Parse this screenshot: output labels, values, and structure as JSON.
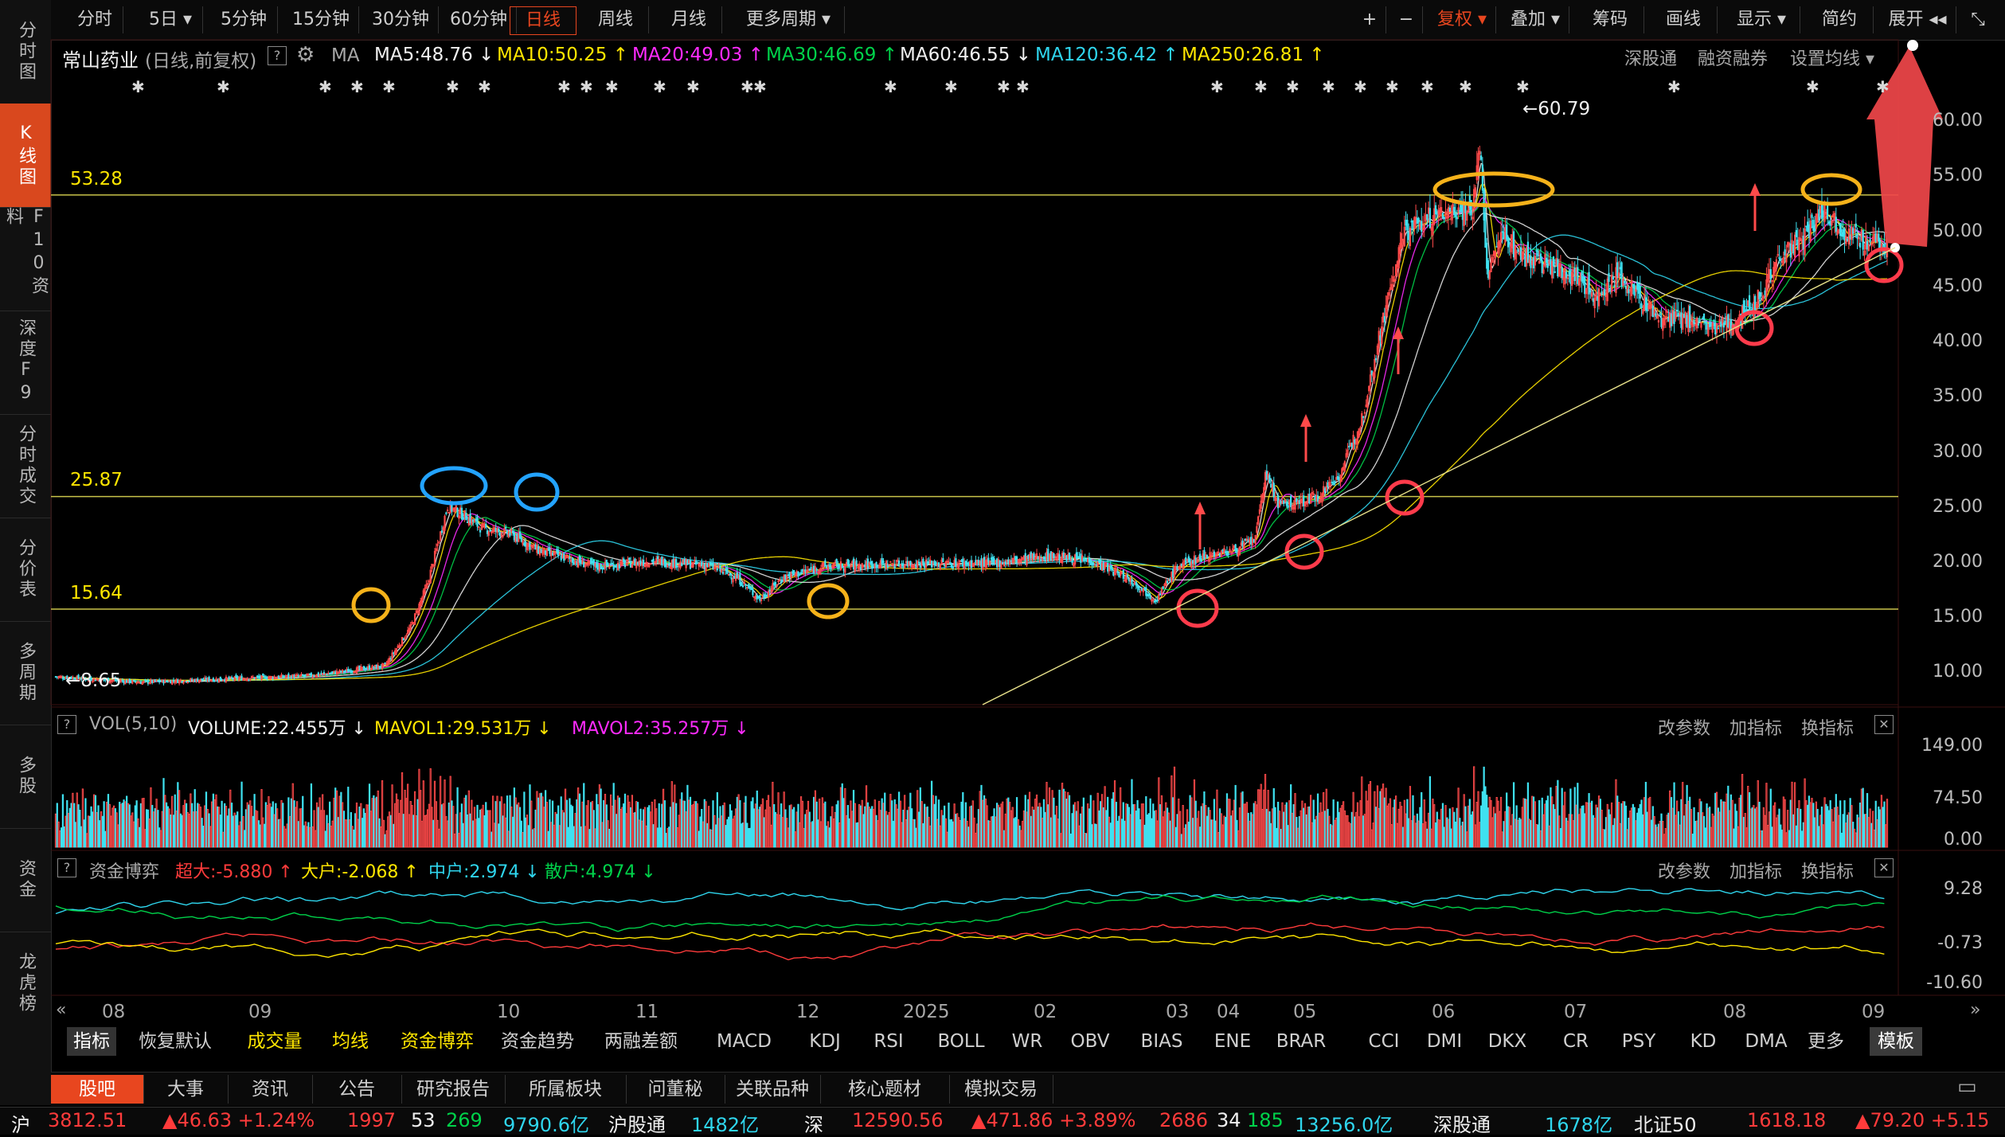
{
  "sidebar": {
    "items": [
      {
        "label": "分时图",
        "active": false
      },
      {
        "label": "K线图",
        "active": true
      },
      {
        "label": "F10资料",
        "active": false
      },
      {
        "label": "深度F9",
        "active": false
      },
      {
        "label": "分时成交",
        "active": false
      },
      {
        "label": "分价表",
        "active": false
      },
      {
        "label": "多周期",
        "active": false
      },
      {
        "label": "多股",
        "active": false
      },
      {
        "label": "资金",
        "active": false
      },
      {
        "label": "龙虎榜",
        "active": false
      }
    ]
  },
  "toolbar": {
    "periods": [
      "分时",
      "5日 ▾",
      "5分钟",
      "15分钟",
      "30分钟",
      "60分钟",
      "日线",
      "周线",
      "月线",
      "更多周期 ▾"
    ],
    "active_period": "日线",
    "right": {
      "plus": "+",
      "minus": "−",
      "fuquan": "复权 ▾",
      "overlay": "叠加 ▾",
      "chips": "筹码",
      "draw": "画线",
      "display": "显示 ▾",
      "simple": "简约",
      "expand": "展开 ◂◂",
      "shrink": "⤡"
    }
  },
  "header": {
    "stock": "常山药业",
    "mode": "(日线,前复权)",
    "help": "?",
    "ma_label": "MA",
    "ma": [
      {
        "text": "MA5:48.76 ↓",
        "color": "#f0f0f0"
      },
      {
        "text": "MA10:50.25 ↑",
        "color": "#ffe600"
      },
      {
        "text": "MA20:49.03 ↑",
        "color": "#ff2bff"
      },
      {
        "text": "MA30:46.69 ↑",
        "color": "#00d24a"
      },
      {
        "text": "MA60:46.55 ↓",
        "color": "#f0f0f0"
      },
      {
        "text": "MA120:36.42 ↑",
        "color": "#2fd6ee"
      },
      {
        "text": "MA250:26.81 ↑",
        "color": "#ffe600"
      }
    ],
    "links": [
      "深股通",
      "融资融券",
      "设置均线 ▾"
    ]
  },
  "price_axis": [
    "60.00",
    "55.00",
    "50.00",
    "45.00",
    "40.00",
    "35.00",
    "30.00",
    "25.00",
    "20.00",
    "15.00",
    "10.00"
  ],
  "hlines": [
    {
      "label": "53.28",
      "value": 53.28
    },
    {
      "label": "25.87",
      "value": 25.87
    },
    {
      "label": "15.64",
      "value": 15.64
    }
  ],
  "annotations": {
    "high": "←60.79",
    "low": "←8.65"
  },
  "chart_data": {
    "type": "candlestick",
    "title": "常山药业 (日线,前复权)",
    "ylim": [
      7,
      62
    ],
    "x_ticks": [
      "08",
      "09",
      "10",
      "11",
      "12",
      "2025",
      "02",
      "03",
      "04",
      "05",
      "06",
      "07",
      "08",
      "09"
    ],
    "high_marker": 60.79,
    "low_marker": 8.65,
    "close_trajectory": [
      [
        0,
        9.5
      ],
      [
        60,
        9.0
      ],
      [
        120,
        9.3
      ],
      [
        180,
        9.6
      ],
      [
        232,
        10.5
      ],
      [
        250,
        14
      ],
      [
        262,
        18
      ],
      [
        276,
        25
      ],
      [
        290,
        24
      ],
      [
        300,
        23
      ],
      [
        320,
        22.5
      ],
      [
        340,
        21
      ],
      [
        380,
        19.5
      ],
      [
        420,
        20
      ],
      [
        460,
        19.6
      ],
      [
        480,
        18.5
      ],
      [
        496,
        16.5
      ],
      [
        512,
        18.5
      ],
      [
        540,
        19.5
      ],
      [
        600,
        19.8
      ],
      [
        660,
        19.8
      ],
      [
        700,
        20.5
      ],
      [
        730,
        20
      ],
      [
        755,
        18.5
      ],
      [
        775,
        16.5
      ],
      [
        790,
        19.5
      ],
      [
        810,
        20.5
      ],
      [
        830,
        21
      ],
      [
        845,
        22
      ],
      [
        852,
        28
      ],
      [
        862,
        25
      ],
      [
        880,
        25.5
      ],
      [
        890,
        26
      ],
      [
        905,
        28
      ],
      [
        920,
        33
      ],
      [
        935,
        42
      ],
      [
        950,
        50
      ],
      [
        965,
        51
      ],
      [
        985,
        52
      ],
      [
        998,
        52
      ],
      [
        1003,
        58
      ],
      [
        1008,
        46
      ],
      [
        1020,
        50
      ],
      [
        1030,
        48
      ],
      [
        1050,
        47
      ],
      [
        1070,
        46
      ],
      [
        1085,
        44
      ],
      [
        1100,
        46
      ],
      [
        1115,
        44
      ],
      [
        1130,
        42
      ],
      [
        1150,
        42
      ],
      [
        1170,
        41
      ],
      [
        1185,
        42
      ],
      [
        1200,
        44
      ],
      [
        1215,
        48
      ],
      [
        1230,
        49
      ],
      [
        1245,
        52
      ],
      [
        1260,
        50
      ],
      [
        1275,
        49
      ],
      [
        1290,
        48.8
      ]
    ],
    "volume": {
      "label": "VOL(5,10)",
      "volume": "VOLUME:22.455万 ↓",
      "mavol1": "MAVOL1:29.531万 ↓",
      "mavol2": "MAVOL2:35.257万 ↓",
      "axis": [
        "149.00",
        "74.50",
        "0.00"
      ]
    },
    "capital_flow": {
      "label": "资金博弈",
      "super_large": "超大:-5.880 ↑",
      "large": "大户:-2.068 ↑",
      "medium": "中户:2.974 ↓",
      "retail": "散户:4.974 ↓",
      "axis": [
        "9.28",
        "-0.73",
        "-10.60"
      ]
    }
  },
  "subpanel_links": [
    "改参数",
    "加指标",
    "换指标"
  ],
  "indicator_tabs": [
    "指标",
    "恢复默认",
    "成交量",
    "均线",
    "资金博弈",
    "资金趋势",
    "两融差额",
    "MACD",
    "KDJ",
    "RSI",
    "BOLL",
    "WR",
    "OBV",
    "BIAS",
    "ENE",
    "BRAR",
    "CCI",
    "DMI",
    "DKX",
    "CR",
    "PSY",
    "KD",
    "DMA",
    "更多",
    "模板"
  ],
  "bottom_tabs": [
    "股吧",
    "大事",
    "资讯",
    "公告",
    "研究报告",
    "所属板块",
    "问董秘",
    "关联品种",
    "核心题材",
    "模拟交易"
  ],
  "ticker": [
    {
      "text": "沪",
      "color": "#f0f0f0"
    },
    {
      "text": "3812.51",
      "color": "#ff3b3b"
    },
    {
      "text": "▲46.63 +1.24%",
      "color": "#ff3b3b"
    },
    {
      "text": "1997",
      "color": "#ff3b3b"
    },
    {
      "text": "53",
      "color": "#f0f0f0"
    },
    {
      "text": "269",
      "color": "#00d24a"
    },
    {
      "text": "9790.6亿",
      "color": "#2fd6ee"
    },
    {
      "text": "沪股通",
      "color": "#f0f0f0"
    },
    {
      "text": "1482亿",
      "color": "#2fd6ee"
    },
    {
      "text": "深",
      "color": "#f0f0f0"
    },
    {
      "text": "12590.56",
      "color": "#ff3b3b"
    },
    {
      "text": "▲471.86 +3.89%",
      "color": "#ff3b3b"
    },
    {
      "text": "2686",
      "color": "#ff3b3b"
    },
    {
      "text": "34",
      "color": "#f0f0f0"
    },
    {
      "text": "185",
      "color": "#00d24a"
    },
    {
      "text": "13256.0亿",
      "color": "#2fd6ee"
    },
    {
      "text": "深股通",
      "color": "#f0f0f0"
    },
    {
      "text": "1678亿",
      "color": "#2fd6ee"
    },
    {
      "text": "北证50",
      "color": "#f0f0f0"
    },
    {
      "text": "1618.18",
      "color": "#ff3b3b"
    },
    {
      "text": "▲79.20 +5.15",
      "color": "#ff3b3b"
    }
  ]
}
